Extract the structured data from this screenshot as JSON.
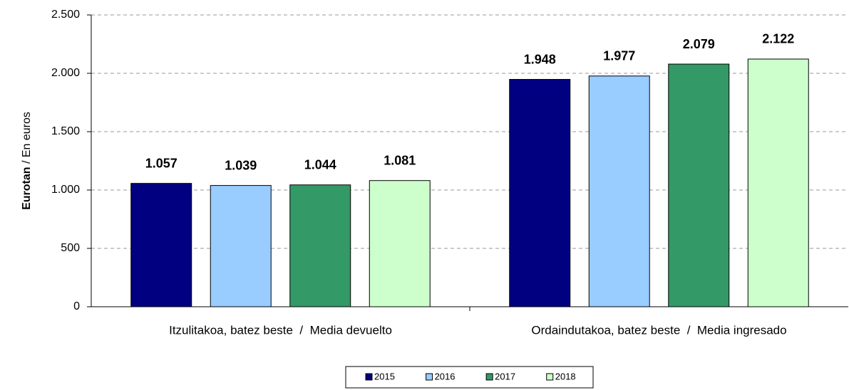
{
  "chart_data": {
    "type": "bar",
    "ylabel": [
      "Eurotan",
      "/ En euros"
    ],
    "categories": [
      "Itzulitakoa, batez beste  /  Media devuelto",
      "Ordaindutakoa, batez beste  /  Media ingresado"
    ],
    "series": [
      {
        "name": "2015",
        "color": "#000080",
        "values": [
          1057,
          1948
        ],
        "value_labels": [
          "1.057",
          "1.948"
        ]
      },
      {
        "name": "2016",
        "color": "#99ccff",
        "values": [
          1039,
          1977
        ],
        "value_labels": [
          "1.039",
          "1.977"
        ]
      },
      {
        "name": "2017",
        "color": "#339966",
        "values": [
          1044,
          2079
        ],
        "value_labels": [
          "1.044",
          "2.079"
        ]
      },
      {
        "name": "2018",
        "color": "#ccffcc",
        "values": [
          1081,
          2122
        ],
        "value_labels": [
          "1.081",
          "2.122"
        ]
      }
    ],
    "ylim": [
      0,
      2500
    ],
    "yticks": [
      0,
      500,
      {
        "value": 1000,
        "label": "1.000"
      },
      {
        "value": 1500,
        "label": "1.500"
      },
      {
        "value": 2000,
        "label": "2.000"
      },
      {
        "value": 2500,
        "label": "2.500"
      }
    ],
    "grid": true,
    "legend": "bottom"
  }
}
